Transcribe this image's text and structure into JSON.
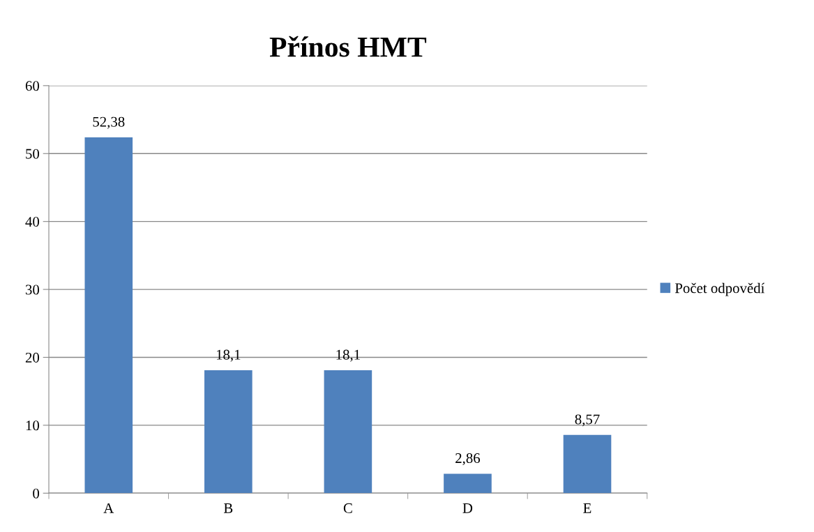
{
  "chart_data": {
    "type": "bar",
    "title": "Přínos HMT",
    "categories": [
      "A",
      "B",
      "C",
      "D",
      "E"
    ],
    "series": [
      {
        "name": "Počet odpovědí",
        "color": "#4f81bd",
        "values": [
          52.38,
          18.1,
          18.1,
          2.86,
          8.57
        ],
        "value_labels": [
          "52,38",
          "18,1",
          "18,1",
          "2,86",
          "8,57"
        ]
      }
    ],
    "ylim": [
      0,
      60
    ],
    "yticks": [
      0,
      10,
      20,
      30,
      40,
      50,
      60
    ],
    "grid": "y",
    "legend": "right"
  }
}
